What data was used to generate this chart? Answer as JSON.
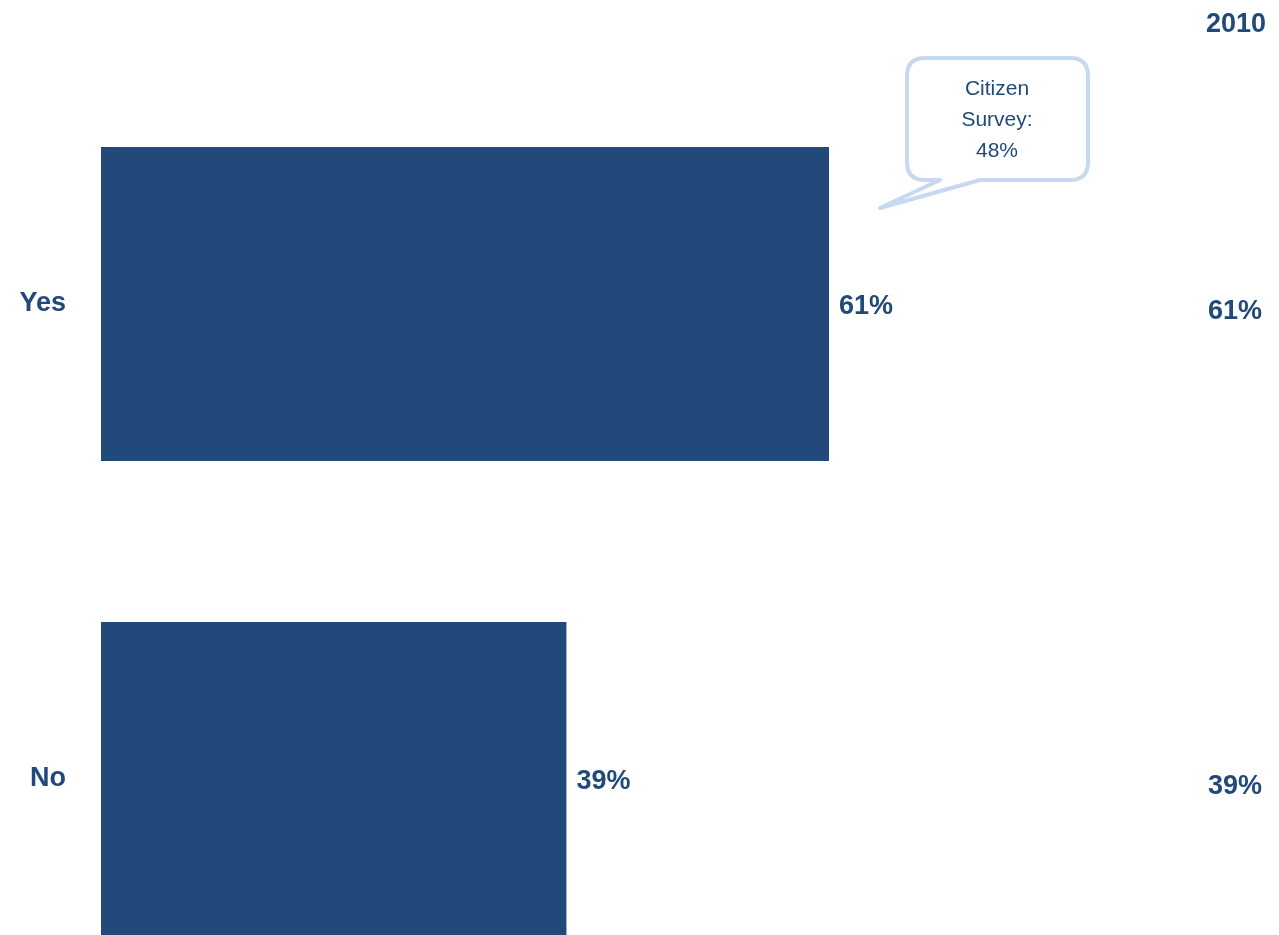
{
  "chart_data": {
    "type": "bar",
    "orientation": "horizontal",
    "categories": [
      "Yes",
      "No"
    ],
    "values": [
      61,
      39
    ],
    "value_labels": [
      "61%",
      "39%"
    ],
    "color": "#214a7b",
    "annotations": [
      "Citizen Survey: 48%",
      "2010",
      "61%",
      "39%"
    ]
  }
}
